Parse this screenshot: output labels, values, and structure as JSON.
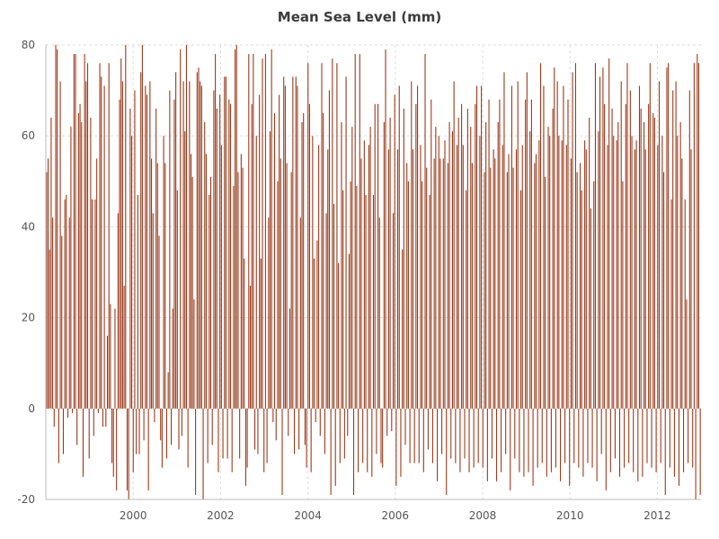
{
  "chart_data": {
    "type": "bar",
    "title": "Mean Sea Level (mm)",
    "xlabel": "",
    "ylabel": "",
    "xlim": [
      "1998-01",
      "2013-01"
    ],
    "ylim": [
      -20,
      80
    ],
    "y_ticks": [
      "-20",
      "0",
      "20",
      "40",
      "60",
      "80"
    ],
    "x_ticks": [
      "2000",
      "2002",
      "2004",
      "2006",
      "2008",
      "2010",
      "2012"
    ],
    "grid": true,
    "legend": "none",
    "bar_color": "#9c3a1b",
    "grid_color": "#dddddd",
    "axis_color": "#bbbbbb",
    "title_color": "#3c3c3c",
    "tick_color": "#555555",
    "series": [
      {
        "x_start": "1998-01",
        "x_end": "2013-01",
        "values_note_free": true,
        "values": [
          52,
          55,
          35,
          64,
          42,
          -4,
          80,
          79,
          -12,
          72,
          38,
          -10,
          46,
          47,
          -2,
          42,
          62,
          -1,
          78,
          78,
          -8,
          65,
          67,
          63,
          -15,
          78,
          72,
          76,
          -11,
          64,
          46,
          -6,
          46,
          55,
          -1,
          76,
          73,
          -4,
          71,
          -4,
          16,
          76,
          23,
          -12,
          -15,
          22,
          -18,
          43,
          68,
          77,
          72,
          27,
          80,
          -18,
          -20,
          66,
          60,
          -14,
          70,
          -10,
          47,
          -10,
          74,
          80,
          -7,
          71,
          69,
          -18,
          72,
          55,
          43,
          -3,
          66,
          54,
          38,
          -7,
          -13,
          60,
          54,
          -11,
          8,
          70,
          -8,
          22,
          68,
          74,
          48,
          -9,
          79,
          -6,
          72,
          61,
          80,
          -13,
          72,
          56,
          51,
          24,
          -19,
          74,
          75,
          72,
          71,
          -20,
          63,
          56,
          -12,
          47,
          51,
          -8,
          70,
          78,
          66,
          -14,
          69,
          58,
          -11,
          73,
          73,
          -11,
          68,
          67,
          -14,
          49,
          79,
          80,
          52,
          -11,
          56,
          53,
          33,
          -17,
          -13,
          78,
          27,
          67,
          78,
          -9,
          60,
          -10,
          69,
          33,
          77,
          -14,
          78,
          -12,
          42,
          61,
          79,
          -3,
          65,
          -7,
          50,
          69,
          55,
          -19,
          73,
          71,
          54,
          -6,
          22,
          52,
          73,
          -10,
          73,
          71,
          -9,
          42,
          63,
          65,
          -8,
          -13,
          76,
          67,
          -14,
          60,
          33,
          -3,
          37,
          58,
          -6,
          76,
          65,
          -10,
          43,
          57,
          70,
          -19,
          77,
          45,
          -17,
          76,
          32,
          -12,
          63,
          48,
          -11,
          73,
          -6,
          34,
          50,
          62,
          -19,
          78,
          49,
          -14,
          78,
          55,
          -12,
          59,
          47,
          -14,
          58,
          62,
          -15,
          47,
          67,
          -10,
          67,
          42,
          -12,
          -13,
          63,
          79,
          -6,
          57,
          64,
          -5,
          43,
          69,
          -17,
          57,
          71,
          -15,
          35,
          66,
          -8,
          54,
          50,
          -12,
          72,
          57,
          -12,
          67,
          71,
          -12,
          58,
          50,
          -14,
          78,
          53,
          -9,
          47,
          68,
          -12,
          55,
          62,
          -16,
          60,
          55,
          -10,
          55,
          59,
          -19,
          54,
          63,
          -11,
          61,
          72,
          -12,
          58,
          64,
          -14,
          67,
          58,
          -11,
          48,
          66,
          -14,
          62,
          54,
          -13,
          67,
          71,
          -12,
          60,
          71,
          -13,
          52,
          63,
          -16,
          68,
          53,
          -11,
          57,
          55,
          -16,
          63,
          68,
          -14,
          58,
          74,
          -10,
          52,
          56,
          -18,
          71,
          53,
          -11,
          57,
          72,
          -14,
          48,
          58,
          -15,
          68,
          74,
          -14,
          61,
          68,
          -17,
          54,
          56,
          -13,
          59,
          76,
          -12,
          71,
          51,
          -15,
          62,
          60,
          -14,
          66,
          75,
          -13,
          72,
          60,
          -16,
          59,
          71,
          -12,
          58,
          68,
          -17,
          55,
          74,
          -12,
          76,
          52,
          -13,
          54,
          48,
          -15,
          59,
          57,
          -12,
          64,
          44,
          -13,
          50,
          76,
          -16,
          61,
          73,
          -10,
          75,
          67,
          -18,
          58,
          77,
          -14,
          66,
          60,
          -11,
          59,
          63,
          -15,
          72,
          50,
          -13,
          67,
          76,
          -12,
          70,
          60,
          -14,
          57,
          59,
          -16,
          71,
          66,
          -15,
          63,
          57,
          -12,
          67,
          76,
          -13,
          65,
          64,
          -14,
          58,
          72,
          -12,
          60,
          52,
          -19,
          75,
          76,
          -13,
          46,
          70,
          -15,
          72,
          60,
          -17,
          63,
          55,
          -14,
          46,
          24,
          -12,
          70,
          57,
          -13,
          76,
          -20,
          78,
          76,
          -19
        ]
      }
    ]
  }
}
